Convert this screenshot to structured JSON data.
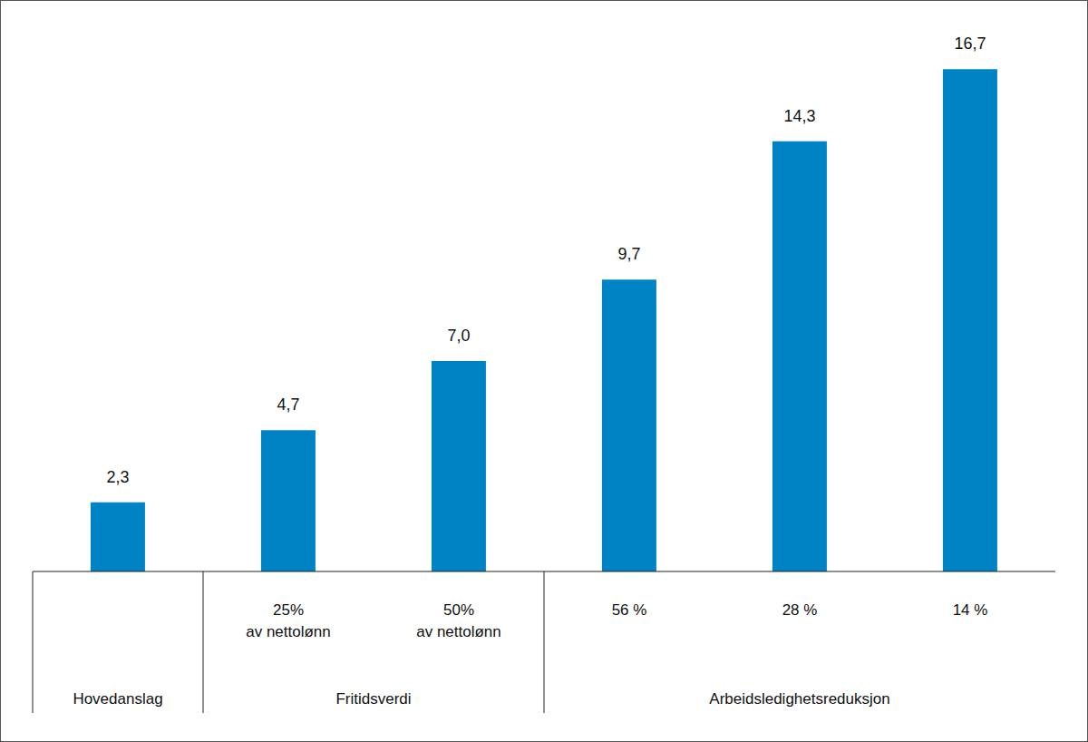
{
  "chart_data": {
    "type": "bar",
    "categories": [
      null,
      "25%\nav nettolønn",
      "50%\nav nettolønn",
      "56 %",
      "28 %",
      "14 %"
    ],
    "groups": [
      {
        "label": "Hovedanslag",
        "count": 1
      },
      {
        "label": "Fritidsverdi",
        "count": 2
      },
      {
        "label": "Arbeidsledighetsreduksjon",
        "count": 3
      }
    ],
    "values": [
      2.3,
      4.7,
      7.0,
      9.7,
      14.3,
      16.7
    ],
    "value_labels": [
      "2,3",
      "4,7",
      "7,0",
      "9,7",
      "14,3",
      "16,7"
    ],
    "color": "#0083c4",
    "ylim": [
      0,
      19
    ],
    "yticks": [],
    "tick_labels": "x",
    "data_labels": true
  }
}
